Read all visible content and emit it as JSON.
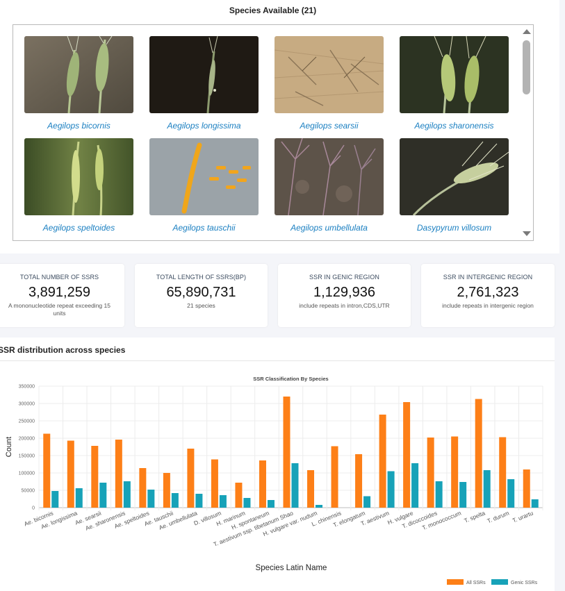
{
  "species_panel": {
    "title": "Species Available (21)",
    "species": [
      {
        "name": "Aegilops bicornis",
        "icon": "wheat-spike-photo"
      },
      {
        "name": "Aegilops longissima",
        "icon": "wheat-spike-photo"
      },
      {
        "name": "Aegilops searsii",
        "icon": "dry-soil-photo"
      },
      {
        "name": "Aegilops sharonensis",
        "icon": "wheat-spike-photo"
      },
      {
        "name": "Aegilops speltoides",
        "icon": "grass-spike-photo"
      },
      {
        "name": "Aegilops tauschii",
        "icon": "grain-spike-photo"
      },
      {
        "name": "Aegilops umbellulata",
        "icon": "grass-field-photo"
      },
      {
        "name": "Dasypyrum villosum",
        "icon": "wheat-spike-photo"
      }
    ]
  },
  "stats": [
    {
      "label": "TOTAL NUMBER OF SSRS",
      "value": "3,891,259",
      "note": "A mononucleotide repeat exceeding 15 units"
    },
    {
      "label": "TOTAL LENGTH OF SSRS(BP)",
      "value": "65,890,731",
      "note": "21 species"
    },
    {
      "label": "SSR IN GENIC REGION",
      "value": "1,129,936",
      "note": "include repeats in intron,CDS,UTR"
    },
    {
      "label": "SSR IN INTERGENIC REGION",
      "value": "2,761,323",
      "note": "include repeats in intergenic region"
    }
  ],
  "distribution": {
    "title": "SSR distribution across species"
  },
  "chart_data": {
    "type": "bar",
    "title": "SSR Classification By Species",
    "xlabel": "Species Latin Name",
    "ylabel": "Count",
    "ylim": [
      0,
      350000
    ],
    "yticks": [
      "0",
      "50000",
      "100000",
      "150000",
      "200000",
      "250000",
      "300000",
      "350000"
    ],
    "grid": true,
    "legend_position": "bottom-right",
    "categories": [
      "Ae. bicornis",
      "Ae. longissima",
      "Ae. searsii",
      "Ae. sharonensis",
      "Ae. speltoides",
      "Ae. tauschii",
      "Ae. umbellulata",
      "D. villosum",
      "H. marinum",
      "H. spontaneum",
      "T. aestivum ssp. tibetanum Shao",
      "H. vulgare var. nudum",
      "L. chinensis",
      "T. elongatum",
      "T. aestivum",
      "H. vulgare",
      "T. dicoccoides",
      "T. monococcum",
      "T. spelta",
      "T. durum",
      "T. urartu"
    ],
    "series": [
      {
        "name": "All SSRs",
        "color": "#fd7f17",
        "values": [
          213000,
          193000,
          178000,
          196000,
          114000,
          100000,
          170000,
          139000,
          72000,
          136000,
          320000,
          108000,
          177000,
          154000,
          268000,
          304000,
          202000,
          205000,
          313000,
          203000,
          110000
        ]
      },
      {
        "name": "Genic SSRs",
        "color": "#17a2b8",
        "values": [
          48000,
          56000,
          72000,
          76000,
          52000,
          42000,
          40000,
          36000,
          28000,
          22000,
          128000,
          8000,
          0,
          33000,
          105000,
          128000,
          76000,
          74000,
          108000,
          82000,
          24000
        ]
      }
    ]
  }
}
